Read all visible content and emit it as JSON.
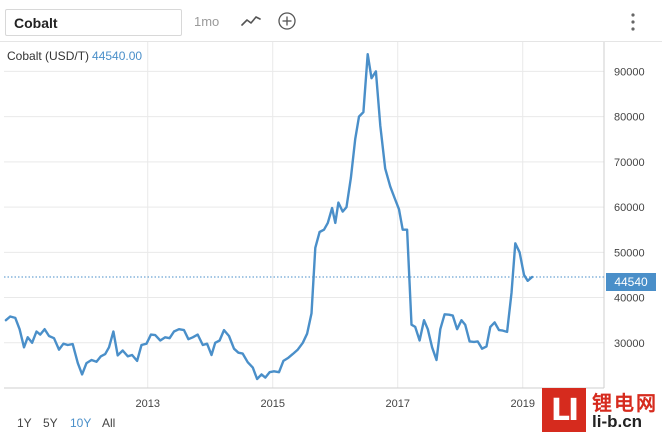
{
  "header": {
    "search_value": "Cobalt",
    "period_label": "1mo",
    "line_icon": "line-chart-icon",
    "add_icon": "plus-circle-icon",
    "more_icon": "vertical-dots-icon"
  },
  "legend": {
    "series_name": "Cobalt (USD/T)",
    "last_value_label": "44540.00"
  },
  "price_tag": "44540",
  "range_buttons": [
    "1Y",
    "5Y",
    "10Y",
    "All"
  ],
  "active_range": "10Y",
  "colors": {
    "line": "#4a8fc9",
    "grid": "#e9e9e9",
    "active": "#4a8fc9",
    "watermark": "#d62b1e"
  },
  "watermark": {
    "logo": "LI",
    "cn": "锂电网",
    "url": "li-b.cn"
  },
  "chart_data": {
    "type": "line",
    "x_ticks": [
      "2013",
      "2015",
      "2017",
      "2019"
    ],
    "y_ticks": [
      30000,
      40000,
      50000,
      60000,
      70000,
      80000,
      90000
    ],
    "ylim": [
      20000,
      96500
    ],
    "xlim": [
      2011.2,
      2020.8
    ],
    "grid": true,
    "reference_value": 44540,
    "series": [
      {
        "name": "Cobalt (USD/T)",
        "points": [
          [
            2011.23,
            35000
          ],
          [
            2011.3,
            35800
          ],
          [
            2011.38,
            35500
          ],
          [
            2011.45,
            33000
          ],
          [
            2011.52,
            29000
          ],
          [
            2011.58,
            31200
          ],
          [
            2011.65,
            30000
          ],
          [
            2011.72,
            32500
          ],
          [
            2011.78,
            31800
          ],
          [
            2011.85,
            33000
          ],
          [
            2011.92,
            31500
          ],
          [
            2012.0,
            31000
          ],
          [
            2012.08,
            28500
          ],
          [
            2012.15,
            29800
          ],
          [
            2012.22,
            29500
          ],
          [
            2012.3,
            29700
          ],
          [
            2012.38,
            25500
          ],
          [
            2012.45,
            23000
          ],
          [
            2012.52,
            25500
          ],
          [
            2012.6,
            26200
          ],
          [
            2012.68,
            25800
          ],
          [
            2012.75,
            27000
          ],
          [
            2012.82,
            27500
          ],
          [
            2012.88,
            29000
          ],
          [
            2012.95,
            32500
          ],
          [
            2013.02,
            27200
          ],
          [
            2013.1,
            28300
          ],
          [
            2013.18,
            27000
          ],
          [
            2013.25,
            27300
          ],
          [
            2013.33,
            26000
          ],
          [
            2013.4,
            29500
          ],
          [
            2013.48,
            29800
          ],
          [
            2013.55,
            31800
          ],
          [
            2013.62,
            31700
          ],
          [
            2013.7,
            30500
          ],
          [
            2013.78,
            31200
          ],
          [
            2013.85,
            31000
          ],
          [
            2013.92,
            32500
          ],
          [
            2014.0,
            33000
          ],
          [
            2014.08,
            32800
          ],
          [
            2014.15,
            30800
          ],
          [
            2014.22,
            31200
          ],
          [
            2014.3,
            31800
          ],
          [
            2014.38,
            29500
          ],
          [
            2014.45,
            29800
          ],
          [
            2014.52,
            27300
          ],
          [
            2014.58,
            30000
          ],
          [
            2014.65,
            30500
          ],
          [
            2014.72,
            32800
          ],
          [
            2014.8,
            31500
          ],
          [
            2014.88,
            28700
          ],
          [
            2014.95,
            27800
          ],
          [
            2015.02,
            27600
          ],
          [
            2015.1,
            25700
          ],
          [
            2015.18,
            24500
          ],
          [
            2015.25,
            22000
          ],
          [
            2015.32,
            23000
          ],
          [
            2015.38,
            22300
          ],
          [
            2015.45,
            23500
          ],
          [
            2015.52,
            23700
          ],
          [
            2015.6,
            23500
          ],
          [
            2015.67,
            26000
          ],
          [
            2015.75,
            26700
          ],
          [
            2015.82,
            27500
          ],
          [
            2015.9,
            28500
          ],
          [
            2015.98,
            30000
          ],
          [
            2016.05,
            32000
          ],
          [
            2016.12,
            36500
          ],
          [
            2016.18,
            51000
          ],
          [
            2016.25,
            54500
          ],
          [
            2016.32,
            55000
          ],
          [
            2016.38,
            56500
          ],
          [
            2016.45,
            59800
          ],
          [
            2016.5,
            56500
          ],
          [
            2016.55,
            61000
          ],
          [
            2016.62,
            59000
          ],
          [
            2016.68,
            60000
          ],
          [
            2016.75,
            66500
          ],
          [
            2016.82,
            75000
          ],
          [
            2016.88,
            80000
          ],
          [
            2016.95,
            81000
          ],
          [
            2017.02,
            93800
          ],
          [
            2017.08,
            88500
          ],
          [
            2017.15,
            90000
          ],
          [
            2017.22,
            78000
          ],
          [
            2017.3,
            68500
          ],
          [
            2017.38,
            64500
          ],
          [
            2017.45,
            62000
          ],
          [
            2017.52,
            59500
          ],
          [
            2017.58,
            55000
          ],
          [
            2017.65,
            55000
          ],
          [
            2017.72,
            34000
          ],
          [
            2017.78,
            33500
          ],
          [
            2017.85,
            30500
          ],
          [
            2017.92,
            35000
          ],
          [
            2017.98,
            33000
          ],
          [
            2018.05,
            29000
          ],
          [
            2018.12,
            26200
          ],
          [
            2018.18,
            33000
          ],
          [
            2018.25,
            36300
          ],
          [
            2018.32,
            36200
          ],
          [
            2018.38,
            36000
          ],
          [
            2018.45,
            33000
          ],
          [
            2018.52,
            35000
          ],
          [
            2018.58,
            34000
          ],
          [
            2018.65,
            30300
          ],
          [
            2018.72,
            30200
          ],
          [
            2018.78,
            30300
          ],
          [
            2018.85,
            28700
          ],
          [
            2018.92,
            29200
          ],
          [
            2018.98,
            33500
          ],
          [
            2019.05,
            34500
          ],
          [
            2019.12,
            32800
          ],
          [
            2019.18,
            32700
          ],
          [
            2019.25,
            32400
          ],
          [
            2019.32,
            41000
          ],
          [
            2019.38,
            52000
          ],
          [
            2019.45,
            50000
          ],
          [
            2019.52,
            45000
          ],
          [
            2019.58,
            43700
          ],
          [
            2019.65,
            44540
          ]
        ]
      }
    ]
  }
}
